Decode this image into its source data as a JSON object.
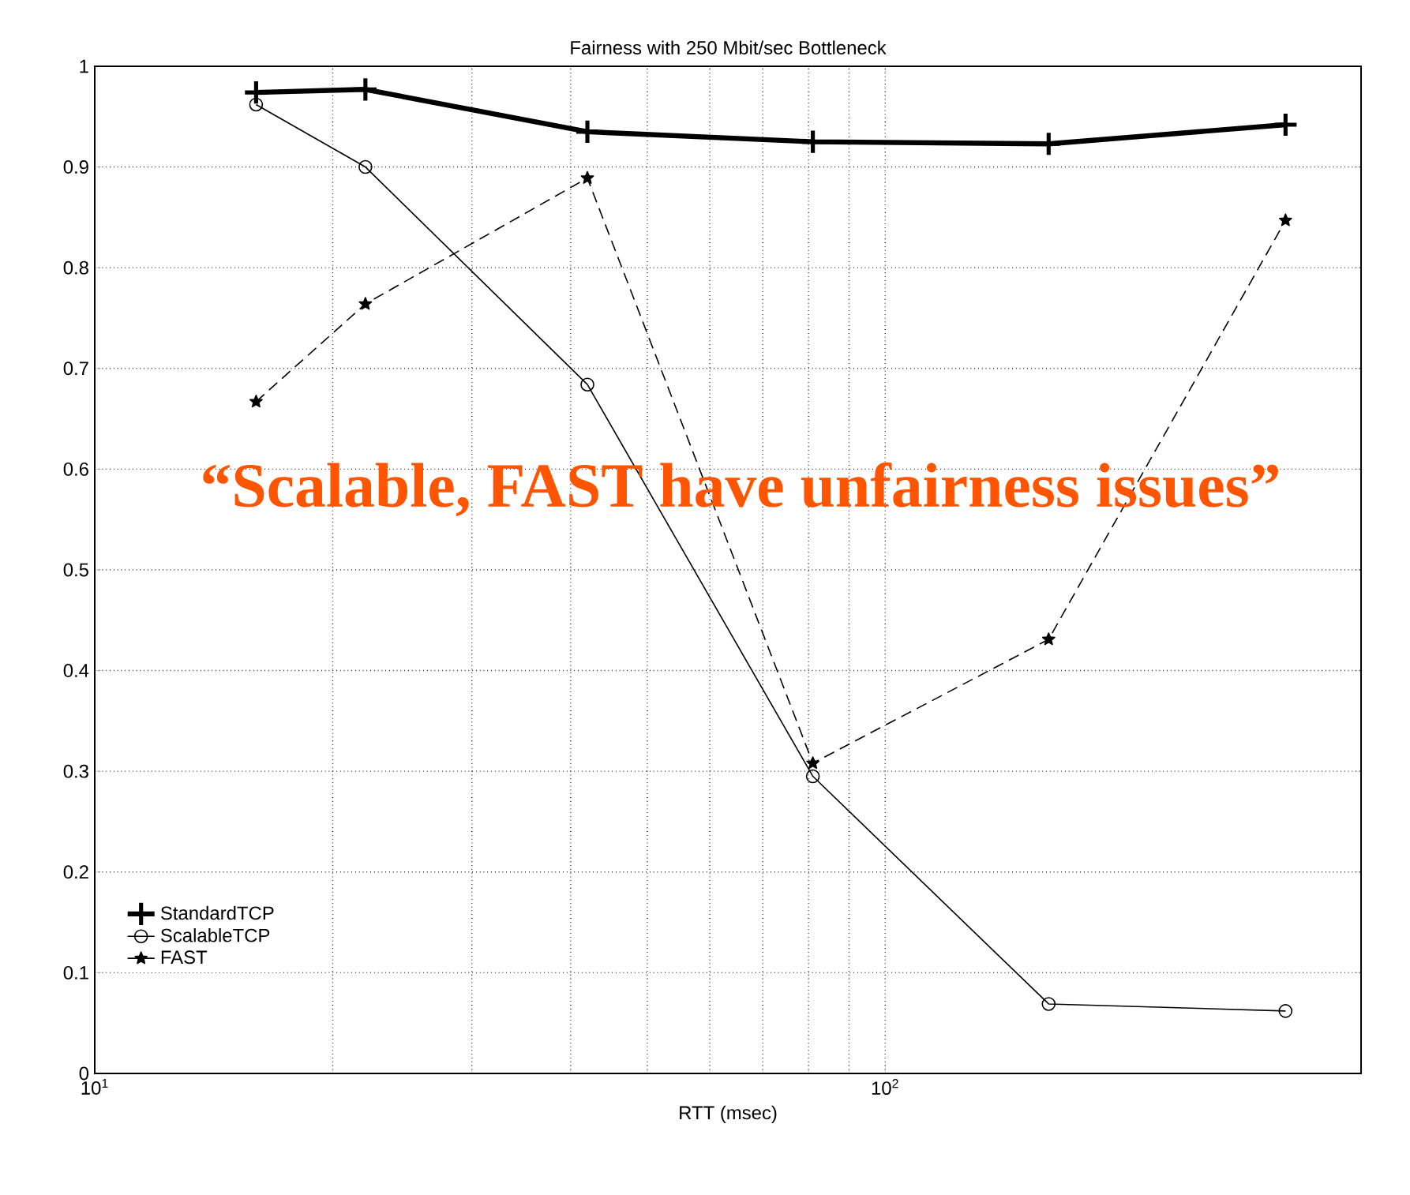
{
  "chart_data": {
    "type": "line",
    "title": "Fairness with 250 Mbit/sec Bottleneck",
    "xlabel": "RTT (msec)",
    "x": [
      16,
      22,
      42,
      81,
      161,
      321
    ],
    "series": [
      {
        "name": "StandardTCP",
        "color": "#000000",
        "marker": "cross",
        "line_style": "solid",
        "values": [
          0.974,
          0.977,
          0.935,
          0.925,
          0.923,
          0.942
        ]
      },
      {
        "name": "ScalableTCP",
        "color": "#000000",
        "marker": "circle",
        "line_style": "solid",
        "values": [
          0.962,
          0.9,
          0.684,
          0.295,
          0.069,
          0.062
        ]
      },
      {
        "name": "FAST",
        "color": "#000000",
        "marker": "star",
        "line_style": "dashed",
        "values": [
          0.667,
          0.764,
          0.889,
          0.308,
          0.431,
          0.847
        ]
      }
    ],
    "log": "x",
    "xlim": [
      10,
      400
    ],
    "xticks": [
      {
        "value": 10,
        "label": "10$^{1}$"
      },
      {
        "value": 100,
        "label": "10$^{2}$"
      }
    ],
    "ylim": [
      0,
      1
    ],
    "yticks": [
      0,
      0.1,
      0.2,
      0.3,
      0.4,
      0.5,
      0.6,
      0.7,
      0.8,
      0.9,
      1
    ],
    "grid": true,
    "legend": "bottom left",
    "annotations": [
      "“Scalable, FAST have unfairness issues”"
    ]
  }
}
